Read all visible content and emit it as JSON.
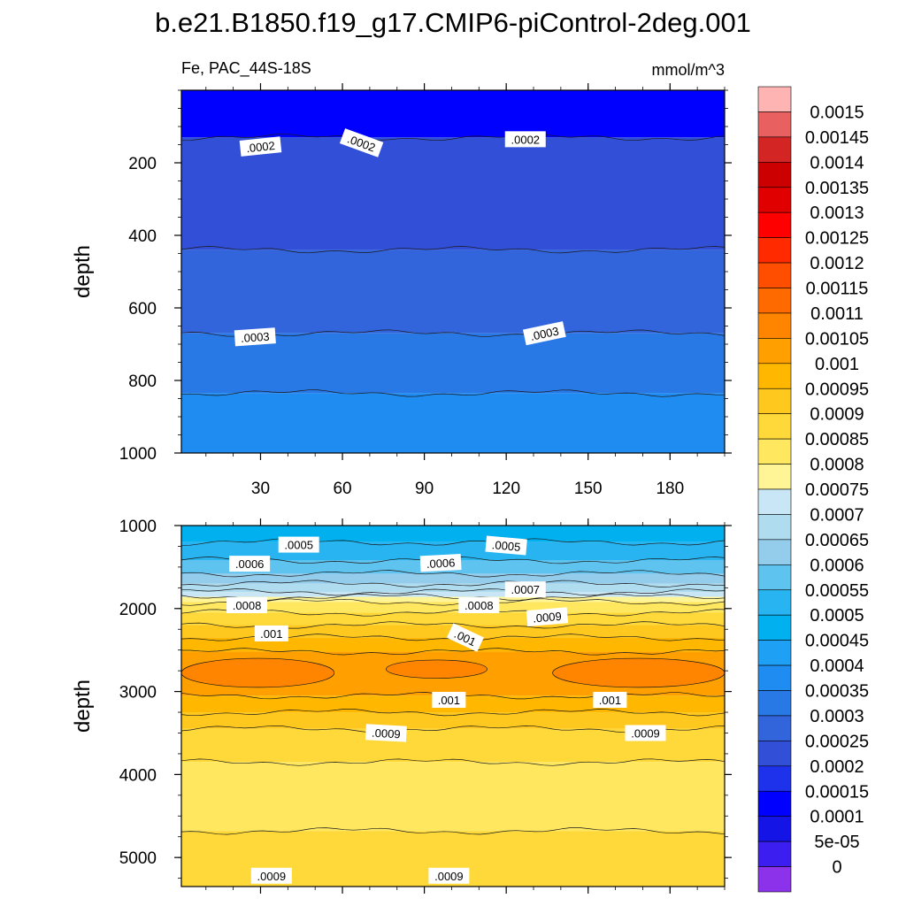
{
  "chart_data": {
    "type": "contour",
    "title": "b.e21.B1850.f19_g17.CMIP6-piControl-2deg.001",
    "subtitle_left": "Fe, PAC_44S-18S",
    "subtitle_right": "mmol/m^3",
    "xlim": [
      1,
      200
    ],
    "x_ticks": [
      30,
      60,
      90,
      120,
      150,
      180
    ],
    "panels": [
      {
        "name": "upper",
        "ylabel": "depth",
        "ylim": [
          0,
          1000
        ],
        "y_ticks": [
          200,
          400,
          600,
          800,
          1000
        ],
        "bands": [
          {
            "from": 0,
            "to": 130,
            "level": 0.0001
          },
          {
            "from": 130,
            "to": 440,
            "level": 0.0002
          },
          {
            "from": 440,
            "to": 670,
            "level": 0.00025
          },
          {
            "from": 670,
            "to": 835,
            "level": 0.0003
          },
          {
            "from": 835,
            "to": 1000,
            "level": 0.00035
          }
        ],
        "contour_labels": [
          {
            "text": ".0002",
            "x": 30,
            "depth": 155,
            "angle": -6
          },
          {
            "text": ".0002",
            "x": 67,
            "depth": 145,
            "angle": 20
          },
          {
            "text": ".0002",
            "x": 127,
            "depth": 135,
            "angle": 0
          },
          {
            "text": ".0003",
            "x": 28,
            "depth": 680,
            "angle": -4
          },
          {
            "text": ".0003",
            "x": 134,
            "depth": 670,
            "angle": -12
          }
        ]
      },
      {
        "name": "lower",
        "ylabel": "depth",
        "ylim": [
          1000,
          5350
        ],
        "y_ticks": [
          1000,
          2000,
          3000,
          4000,
          5000
        ],
        "bands": [
          {
            "from": 1000,
            "to": 1200,
            "level": 0.00045
          },
          {
            "from": 1200,
            "to": 1420,
            "level": 0.0005
          },
          {
            "from": 1420,
            "to": 1580,
            "level": 0.00055
          },
          {
            "from": 1580,
            "to": 1700,
            "level": 0.0006
          },
          {
            "from": 1700,
            "to": 1800,
            "level": 0.00065
          },
          {
            "from": 1800,
            "to": 1860,
            "level": 0.0007
          },
          {
            "from": 1860,
            "to": 1920,
            "level": 0.00075
          },
          {
            "from": 1920,
            "to": 2050,
            "level": 0.0008
          },
          {
            "from": 2050,
            "to": 2200,
            "level": 0.00085
          },
          {
            "from": 2200,
            "to": 2350,
            "level": 0.0009
          },
          {
            "from": 2350,
            "to": 2520,
            "level": 0.00095
          },
          {
            "from": 2520,
            "to": 3050,
            "level": 0.001
          },
          {
            "from": 3050,
            "to": 3250,
            "level": 0.00095
          },
          {
            "from": 3250,
            "to": 3450,
            "level": 0.0009
          },
          {
            "from": 3450,
            "to": 3850,
            "level": 0.00085
          },
          {
            "from": 3850,
            "to": 4680,
            "level": 0.0008
          },
          {
            "from": 4680,
            "to": 5350,
            "level": 0.00085
          }
        ],
        "cores": [
          {
            "x_from": 1,
            "x_to": 57,
            "depth_from": 2600,
            "depth_to": 2950,
            "level": 0.00105
          },
          {
            "x_from": 76,
            "x_to": 113,
            "depth_from": 2620,
            "depth_to": 2840,
            "level": 0.00105
          },
          {
            "x_from": 137,
            "x_to": 200,
            "depth_from": 2600,
            "depth_to": 2950,
            "level": 0.00105
          }
        ],
        "contour_labels": [
          {
            "text": ".0005",
            "x": 44,
            "depth": 1230,
            "angle": 0
          },
          {
            "text": ".0005",
            "x": 120,
            "depth": 1240,
            "angle": 5
          },
          {
            "text": ".0006",
            "x": 26,
            "depth": 1460,
            "angle": 0
          },
          {
            "text": ".0006",
            "x": 96,
            "depth": 1450,
            "angle": -3
          },
          {
            "text": ".0007",
            "x": 127,
            "depth": 1770,
            "angle": 0
          },
          {
            "text": ".0008",
            "x": 25,
            "depth": 1960,
            "angle": 0
          },
          {
            "text": ".0008",
            "x": 110,
            "depth": 1960,
            "angle": 0
          },
          {
            "text": ".0009",
            "x": 135,
            "depth": 2100,
            "angle": -5
          },
          {
            "text": ".001",
            "x": 34,
            "depth": 2300,
            "angle": 0
          },
          {
            "text": ".001",
            "x": 105,
            "depth": 2350,
            "angle": 25
          },
          {
            "text": ".001",
            "x": 99,
            "depth": 3100,
            "angle": 0
          },
          {
            "text": ".001",
            "x": 158,
            "depth": 3100,
            "angle": 0
          },
          {
            "text": ".0009",
            "x": 76,
            "depth": 3500,
            "angle": 3
          },
          {
            "text": ".0009",
            "x": 171,
            "depth": 3500,
            "angle": 0
          },
          {
            "text": ".0009",
            "x": 34,
            "depth": 5220,
            "angle": 0
          },
          {
            "text": ".0009",
            "x": 99,
            "depth": 5220,
            "angle": 0
          }
        ]
      }
    ],
    "colorbar": {
      "labels": [
        "0.0015",
        "0.00145",
        "0.0014",
        "0.00135",
        "0.0013",
        "0.00125",
        "0.0012",
        "0.00115",
        "0.0011",
        "0.00105",
        "0.001",
        "0.00095",
        "0.0009",
        "0.00085",
        "0.0008",
        "0.00075",
        "0.0007",
        "0.00065",
        "0.0006",
        "0.00055",
        "0.0005",
        "0.00045",
        "0.0004",
        "0.00035",
        "0.0003",
        "0.00025",
        "0.0002",
        "0.00015",
        "0.0001",
        "5e-05",
        "0"
      ],
      "colors": [
        "#ffb4b4",
        "#e86060",
        "#d42525",
        "#cc0000",
        "#e00000",
        "#ff0000",
        "#ff2a00",
        "#ff4e00",
        "#ff6a00",
        "#ff8500",
        "#ffa000",
        "#ffb700",
        "#ffc81e",
        "#ffd93a",
        "#ffe860",
        "#fff496",
        "#c8e6f5",
        "#b0dcf0",
        "#94cceb",
        "#5fc3ef",
        "#28b4f0",
        "#00b0ef",
        "#1ea0f5",
        "#1e8cf0",
        "#2878e6",
        "#3264dc",
        "#3250d7",
        "#1e32eb",
        "#0000ff",
        "#1414e6",
        "#3c1ef0",
        "#8c32eb"
      ]
    }
  }
}
